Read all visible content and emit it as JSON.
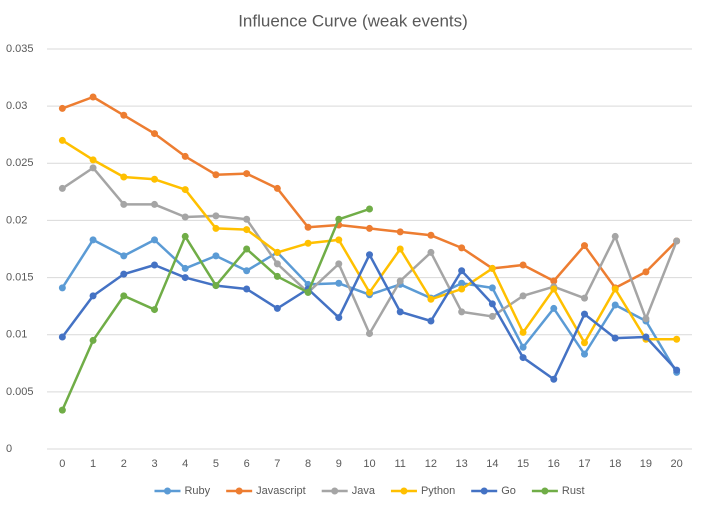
{
  "chart_data": {
    "type": "line",
    "title": "Influence Curve (weak events)",
    "categories": [
      "0",
      "1",
      "2",
      "3",
      "4",
      "5",
      "6",
      "7",
      "8",
      "9",
      "10",
      "11",
      "12",
      "13",
      "14",
      "15",
      "16",
      "17",
      "18",
      "19",
      "20"
    ],
    "ylim": [
      0,
      0.035
    ],
    "yticks": [
      0,
      0.005,
      0.01,
      0.015,
      0.02,
      0.025,
      0.03,
      0.035
    ],
    "grid": true,
    "legend": "bottom",
    "series": [
      {
        "name": "Ruby",
        "color": "#5b9bd5",
        "values": [
          0.0141,
          0.0183,
          0.0169,
          0.0183,
          0.0158,
          0.0169,
          0.0156,
          0.0172,
          0.0144,
          0.0145,
          0.0135,
          0.0144,
          0.0132,
          0.0145,
          0.0141,
          0.0089,
          0.0123,
          0.0083,
          0.0126,
          0.0112,
          0.0067
        ]
      },
      {
        "name": "Javascript",
        "color": "#ed7d31",
        "values": [
          0.0298,
          0.0308,
          0.0292,
          0.0276,
          0.0256,
          0.024,
          0.0241,
          0.0228,
          0.0194,
          0.0196,
          0.0193,
          0.019,
          0.0187,
          0.0176,
          0.0158,
          0.0161,
          0.0147,
          0.0178,
          0.0141,
          0.0155,
          0.0182
        ]
      },
      {
        "name": "Java",
        "color": "#a5a5a5",
        "values": [
          0.0228,
          0.0246,
          0.0214,
          0.0214,
          0.0203,
          0.0204,
          0.0201,
          0.0162,
          0.0137,
          0.0162,
          0.0101,
          0.0147,
          0.0172,
          0.012,
          0.0116,
          0.0134,
          0.0142,
          0.0132,
          0.0186,
          0.0114,
          0.0182
        ]
      },
      {
        "name": "Python",
        "color": "#ffc000",
        "values": [
          0.027,
          0.0253,
          0.0238,
          0.0236,
          0.0227,
          0.0193,
          0.0192,
          0.0172,
          0.018,
          0.0183,
          0.0137,
          0.0175,
          0.0131,
          0.014,
          0.0158,
          0.0102,
          0.014,
          0.0093,
          0.014,
          0.0096,
          0.0096
        ]
      },
      {
        "name": "Go",
        "color": "#4472c4",
        "values": [
          0.0098,
          0.0134,
          0.0153,
          0.0161,
          0.015,
          0.0143,
          0.014,
          0.0123,
          0.014,
          0.0115,
          0.017,
          0.012,
          0.0112,
          0.0156,
          0.0127,
          0.008,
          0.0061,
          0.0118,
          0.0097,
          0.0098,
          0.0069
        ]
      },
      {
        "name": "Rust",
        "color": "#70ad47",
        "values": [
          0.0034,
          0.0095,
          0.0134,
          0.0122,
          0.0186,
          0.0143,
          0.0175,
          0.0151,
          0.0137,
          0.0201,
          0.021,
          null,
          null,
          null,
          null,
          null,
          null,
          null,
          null,
          null,
          null
        ]
      }
    ]
  }
}
